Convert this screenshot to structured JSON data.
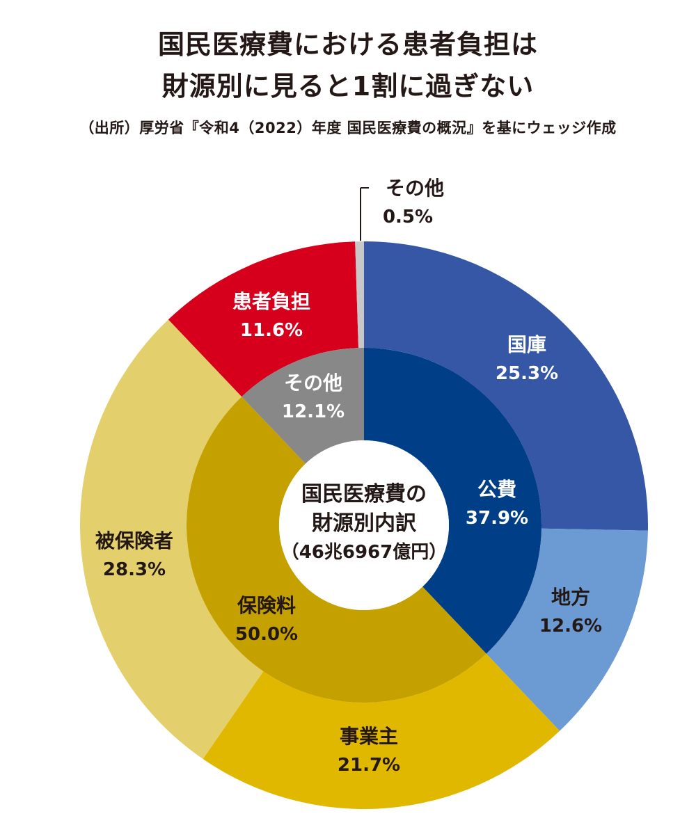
{
  "title_line1": "国民医療費における患者負担は",
  "title_line2": "財源別に見ると1割に過ぎない",
  "source": "（出所）厚労省『令和4（2022）年度 国民医療費の概況』を基にウェッジ作成",
  "chart_data": {
    "type": "pie",
    "center_label": [
      "国民医療費の",
      "財源別内訳",
      "（46兆6967億円）"
    ],
    "inner": [
      {
        "name": "公費",
        "value": 37.9,
        "label": "37.9%",
        "color": "#003f87"
      },
      {
        "name": "保険料",
        "value": 50.0,
        "label": "50.0%",
        "color": "#c5a100"
      },
      {
        "name": "その他",
        "value": 12.1,
        "label": "12.1%",
        "color": "#888888"
      }
    ],
    "outer": [
      {
        "name": "国庫",
        "value": 25.3,
        "label": "25.3%",
        "color": "#3557a6"
      },
      {
        "name": "地方",
        "value": 12.6,
        "label": "12.6%",
        "color": "#6b9bd2"
      },
      {
        "name": "事業主",
        "value": 21.7,
        "label": "21.7%",
        "color": "#e0b800"
      },
      {
        "name": "被保険者",
        "value": 28.3,
        "label": "28.3%",
        "color": "#e3d06d"
      },
      {
        "name": "患者負担",
        "value": 11.6,
        "label": "11.6%",
        "color": "#d7001c"
      },
      {
        "name": "その他",
        "value": 0.5,
        "label": "0.5%",
        "color": "#c8c8c8"
      }
    ]
  }
}
